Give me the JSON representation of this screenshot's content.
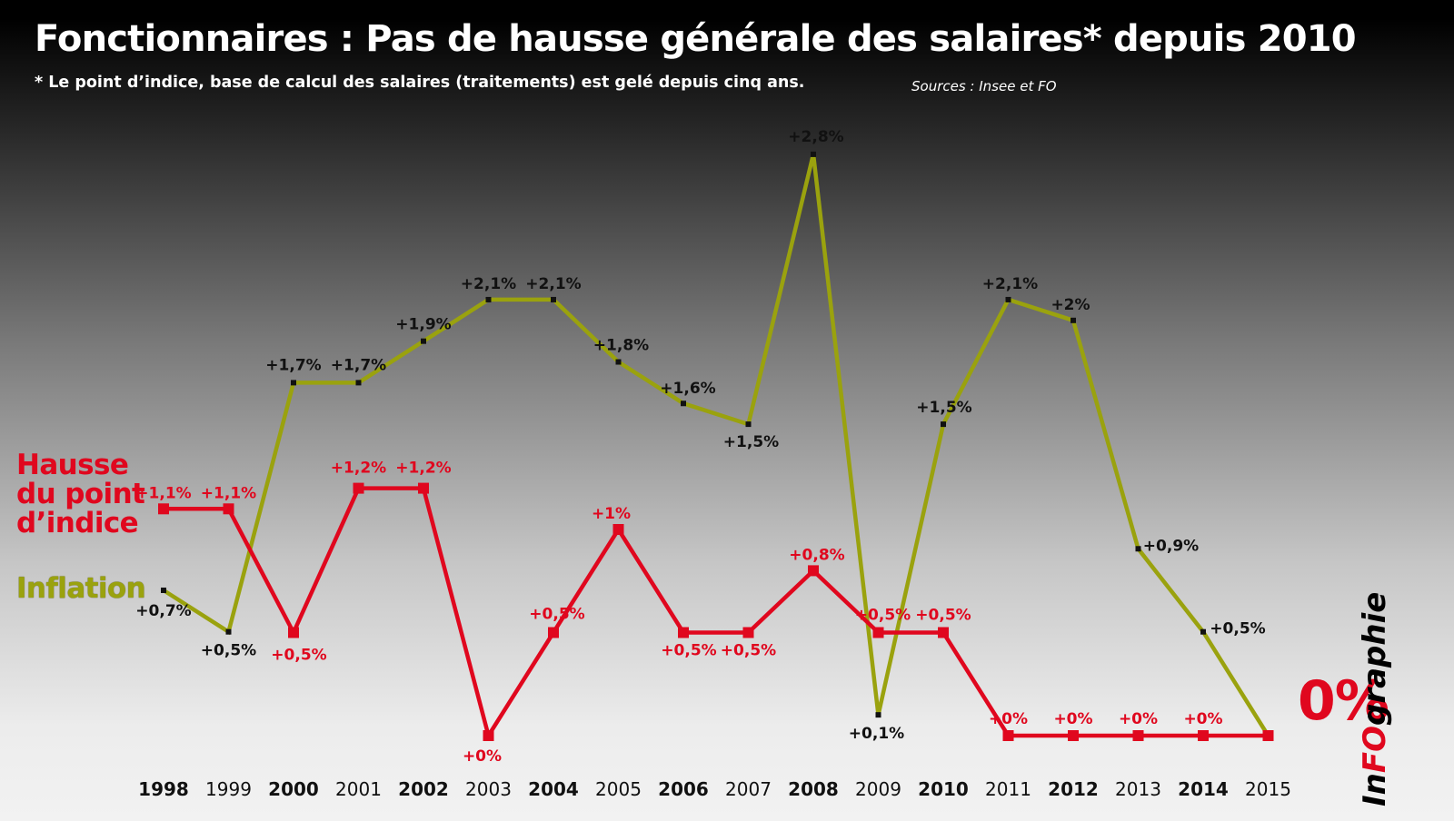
{
  "header": {
    "title": "Fonctionnaires : Pas de hausse générale des salaires* depuis 2010",
    "subtitle": "* Le point d’indice, base de calcul des salaires (traitements) est gelé depuis cinq ans.",
    "sources": "Sources : Insee et FO"
  },
  "labels": {
    "index_series": "Hausse du point d’indice",
    "inflation_series": "Inflation",
    "final_value": "0%"
  },
  "logo": {
    "part1": "In",
    "part2": "FO",
    "part3": "graphie"
  },
  "colors": {
    "index": "#e0071e",
    "inflation": "#9aa20e",
    "marker": "#111111",
    "text_dark": "#111111",
    "title": "#ffffff"
  },
  "chart_data": {
    "type": "line",
    "title": "Fonctionnaires : Pas de hausse générale des salaires* depuis 2010",
    "x": [
      "1998",
      "1999",
      "2000",
      "2001",
      "2002",
      "2003",
      "2004",
      "2005",
      "2006",
      "2007",
      "2008",
      "2009",
      "2010",
      "2011",
      "2012",
      "2013",
      "2014",
      "2015"
    ],
    "bold_years": [
      "1998",
      "2000",
      "2002",
      "2004",
      "2006",
      "2008",
      "2010",
      "2012",
      "2014"
    ],
    "ylim": [
      0,
      2.8
    ],
    "grid": false,
    "legend": "left",
    "series": [
      {
        "name": "Hausse du point d’indice",
        "color": "#e0071e",
        "values": [
          1.1,
          1.1,
          0.5,
          1.2,
          1.2,
          0,
          0.5,
          1,
          0.5,
          0.5,
          0.8,
          0.5,
          0.5,
          0,
          0,
          0,
          0,
          0
        ],
        "labels": [
          "+1,1%",
          "+1,1%",
          "+0,5%",
          "+1,2%",
          "+1,2%",
          "+0%",
          "+0,5%",
          "+1%",
          "+0,5%",
          "+0,5%",
          "+0,8%",
          "+0,5%",
          "+0,5%",
          "+0%",
          "+0%",
          "+0%",
          "+0%",
          ""
        ]
      },
      {
        "name": "Inflation",
        "color": "#9aa20e",
        "values": [
          0.7,
          0.5,
          1.7,
          1.7,
          1.9,
          2.1,
          2.1,
          1.8,
          1.6,
          1.5,
          2.8,
          0.1,
          1.5,
          2.1,
          2,
          0.9,
          0.5,
          0
        ],
        "labels": [
          "+0,7%",
          "+0,5%",
          "+1,7%",
          "+1,7%",
          "+1,9%",
          "+2,1%",
          "+2,1%",
          "+1,8%",
          "+1,6%",
          "+1,5%",
          "+2,8%",
          "+0,1%",
          "+1,5%",
          "+2,1%",
          "+2%",
          "+0,9%",
          "+0,5%",
          ""
        ]
      }
    ]
  }
}
